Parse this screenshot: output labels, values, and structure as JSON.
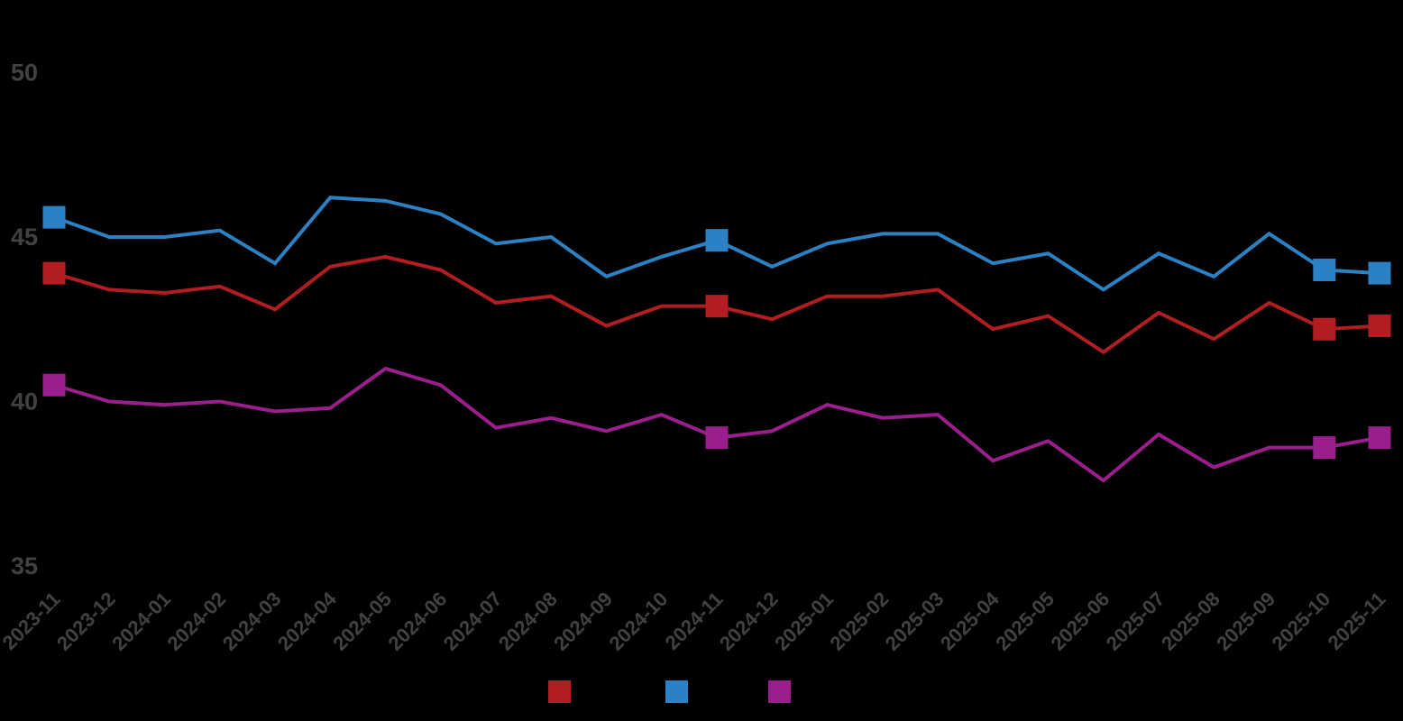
{
  "figure": {
    "background": "#000000",
    "tick_label_color": "#414141"
  },
  "chart_data": {
    "type": "line",
    "title": "",
    "xlabel": "",
    "ylabel": "",
    "grid": false,
    "legend_position": "bottom",
    "x_tick_rotation": 45,
    "ylim": [
      35,
      50
    ],
    "y_ticks": [
      50,
      45,
      40,
      35
    ],
    "categories": [
      "2023-11",
      "2023-12",
      "2024-01",
      "2024-02",
      "2024-03",
      "2024-04",
      "2024-05",
      "2024-06",
      "2024-07",
      "2024-08",
      "2024-09",
      "2024-10",
      "2024-11",
      "2024-12",
      "2025-01",
      "2025-02",
      "2025-03",
      "2025-04",
      "2025-05",
      "2025-06",
      "2025-07",
      "2025-08",
      "2025-09",
      "2025-10",
      "2025-11"
    ],
    "marker": "square",
    "marker_indices": [
      0,
      12,
      23,
      24
    ],
    "series": [
      {
        "name": "red-series",
        "label": "",
        "color": "#b21d21",
        "values": [
          43.9,
          43.4,
          43.3,
          43.5,
          42.8,
          44.1,
          44.4,
          44.0,
          43.0,
          43.2,
          42.3,
          42.9,
          42.9,
          42.5,
          43.2,
          43.2,
          43.4,
          42.2,
          42.6,
          41.5,
          42.7,
          41.9,
          43.0,
          42.2,
          42.3
        ]
      },
      {
        "name": "blue-series",
        "label": "",
        "color": "#2b81c4",
        "values": [
          45.6,
          45.0,
          45.0,
          45.2,
          44.2,
          46.2,
          46.1,
          45.7,
          44.8,
          45.0,
          43.8,
          44.4,
          44.9,
          44.1,
          44.8,
          45.1,
          45.1,
          44.2,
          44.5,
          43.4,
          44.5,
          43.8,
          45.1,
          44.0,
          43.9
        ]
      },
      {
        "name": "magenta-series",
        "label": "",
        "color": "#9a1e8c",
        "values": [
          40.5,
          40.0,
          39.9,
          40.0,
          39.7,
          39.8,
          41.0,
          40.5,
          39.2,
          39.5,
          39.1,
          39.6,
          38.9,
          39.1,
          39.9,
          39.5,
          39.6,
          38.2,
          38.8,
          37.6,
          39.0,
          38.0,
          38.6,
          38.6,
          38.9
        ]
      }
    ]
  }
}
